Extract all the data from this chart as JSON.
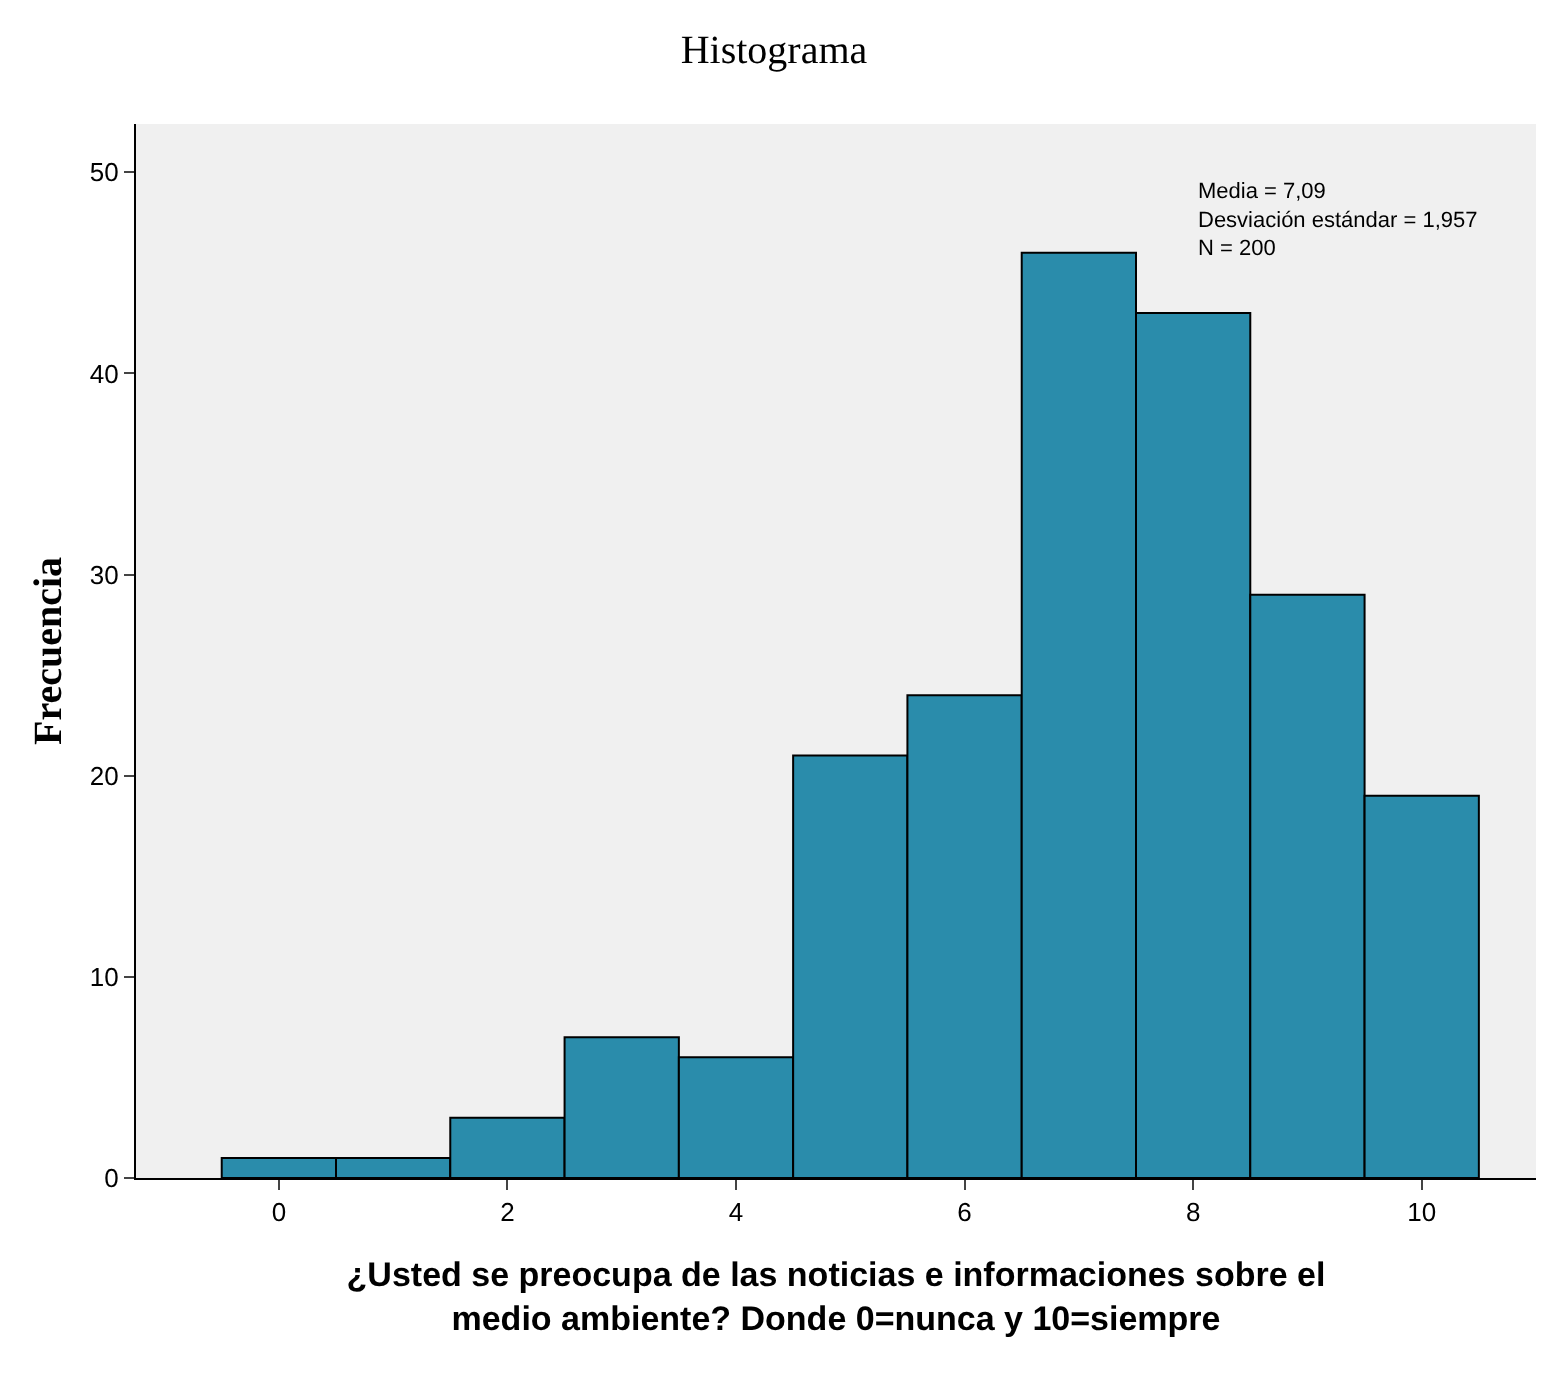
{
  "chart_data": {
    "type": "histogram",
    "title": "Histograma",
    "xlabel": "¿Usted se preocupa de las noticias e informaciones sobre el\nmedio ambiente? Donde 0=nunca y 10=siempre",
    "ylabel": "Frecuencia",
    "bins": [
      -0.5,
      0.5,
      1.5,
      2.5,
      3.5,
      4.5,
      5.5,
      6.5,
      7.5,
      8.5,
      9.5,
      10.5
    ],
    "values": [
      1,
      1,
      3,
      7,
      6,
      21,
      24,
      46,
      43,
      29,
      19
    ],
    "color": "#2a8cab",
    "xlim": [
      -1.25,
      11.0
    ],
    "xticks": [
      0,
      2,
      4,
      6,
      8,
      10
    ],
    "ylim": [
      0,
      52.4
    ],
    "yticks": [
      0,
      10,
      20,
      30,
      40,
      50
    ],
    "grid": false,
    "legend": false,
    "annotations": [
      "Media = 7,09\nDesviación estándar = 1,957\nN = 200"
    ]
  }
}
